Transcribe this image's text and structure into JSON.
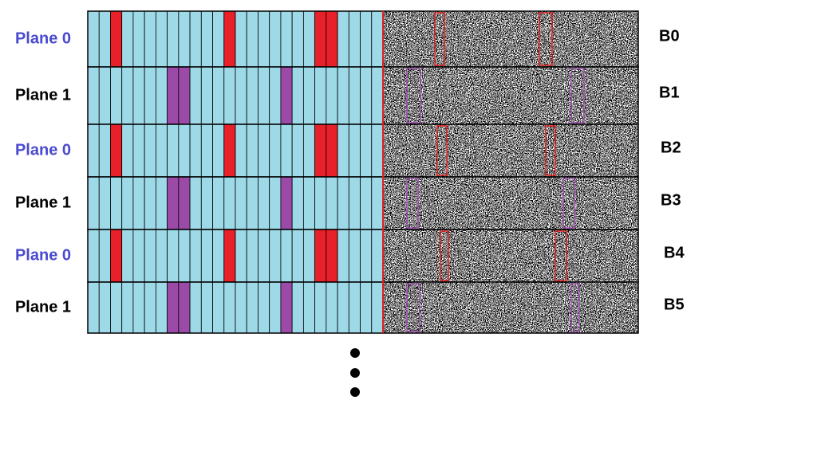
{
  "rows": [
    {
      "plane": "Plane 0",
      "block": "B0"
    },
    {
      "plane": "Plane 1",
      "block": "B1"
    },
    {
      "plane": "Plane 0",
      "block": "B2"
    },
    {
      "plane": "Plane 1",
      "block": "B3"
    },
    {
      "plane": "Plane 0",
      "block": "B4"
    },
    {
      "plane": "Plane 1",
      "block": "B5"
    }
  ]
}
